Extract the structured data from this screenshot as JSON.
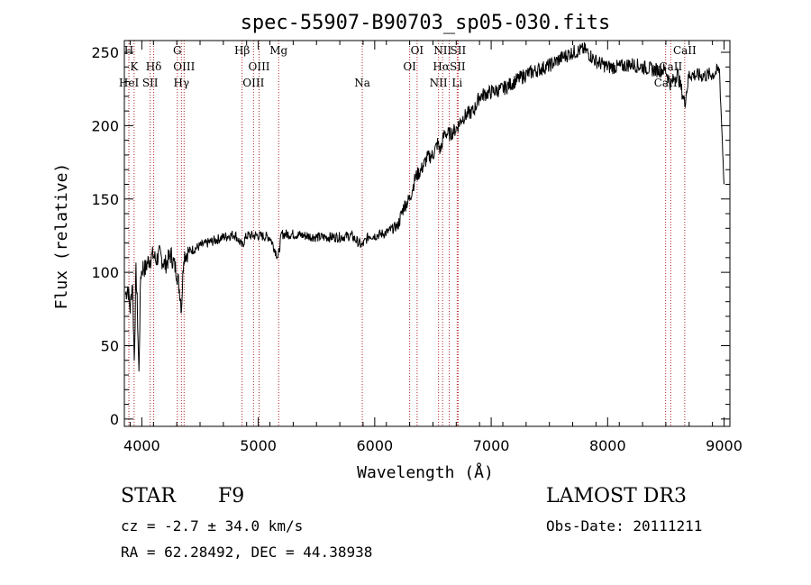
{
  "chart_data": {
    "type": "line",
    "title": "spec-55907-B90703_sp05-030.fits",
    "xlabel": "Wavelength (Å)",
    "ylabel": "Flux (relative)",
    "xlim": [
      3850,
      9050
    ],
    "ylim": [
      -5,
      258
    ],
    "xticks": [
      4000,
      5000,
      6000,
      7000,
      8000,
      9000
    ],
    "yticks": [
      0,
      50,
      100,
      150,
      200,
      250
    ],
    "series": [
      {
        "name": "spectrum",
        "x": [
          3860,
          3880,
          3900,
          3920,
          3935,
          3950,
          3960,
          3975,
          3990,
          4010,
          4030,
          4050,
          4080,
          4100,
          4120,
          4150,
          4200,
          4250,
          4300,
          4330,
          4340,
          4360,
          4400,
          4500,
          4600,
          4700,
          4800,
          4860,
          4900,
          5000,
          5100,
          5170,
          5200,
          5300,
          5400,
          5500,
          5600,
          5700,
          5800,
          5890,
          5950,
          6000,
          6100,
          6200,
          6250,
          6300,
          6350,
          6400,
          6450,
          6500,
          6540,
          6563,
          6600,
          6650,
          6700,
          6750,
          6800,
          6850,
          6900,
          7000,
          7100,
          7200,
          7300,
          7400,
          7500,
          7600,
          7700,
          7800,
          7900,
          8000,
          8100,
          8200,
          8300,
          8400,
          8498,
          8542,
          8600,
          8662,
          8700,
          8800,
          8900,
          8960,
          9000
        ],
        "y": [
          85,
          90,
          75,
          95,
          40,
          100,
          80,
          30,
          98,
          104,
          102,
          107,
          110,
          112,
          108,
          112,
          105,
          112,
          100,
          85,
          75,
          112,
          114,
          118,
          121,
          124,
          126,
          118,
          125,
          125,
          124,
          110,
          126,
          126,
          125,
          124,
          124,
          124,
          125,
          118,
          125,
          125,
          127,
          132,
          145,
          150,
          165,
          170,
          178,
          180,
          188,
          183,
          195,
          194,
          198,
          205,
          208,
          210,
          220,
          223,
          225,
          230,
          235,
          238,
          241,
          246,
          250,
          252,
          244,
          240,
          240,
          242,
          240,
          238,
          238,
          228,
          236,
          215,
          235,
          234,
          235,
          238,
          160
        ]
      }
    ],
    "lines": [
      {
        "label": "H",
        "x": 3889,
        "row": 0
      },
      {
        "label": "K",
        "x": 3934,
        "row": 1
      },
      {
        "label": "HeI",
        "x": 3889,
        "row": 2
      },
      {
        "label": "SII",
        "x": 4072,
        "row": 2
      },
      {
        "label": "Hδ",
        "x": 4102,
        "row": 1
      },
      {
        "label": "G",
        "x": 4305,
        "row": 0
      },
      {
        "label": "OIII",
        "x": 4363,
        "row": 1
      },
      {
        "label": "Hγ",
        "x": 4340,
        "row": 2
      },
      {
        "label": "Hβ",
        "x": 4861,
        "row": 0
      },
      {
        "label": "OIII",
        "x": 5007,
        "row": 1
      },
      {
        "label": "OIII",
        "x": 4959,
        "row": 2
      },
      {
        "label": "Mg",
        "x": 5175,
        "row": 0
      },
      {
        "label": "Na",
        "x": 5893,
        "row": 2
      },
      {
        "label": "OI",
        "x": 6364,
        "row": 0
      },
      {
        "label": "OI",
        "x": 6300,
        "row": 1
      },
      {
        "label": "NII",
        "x": 6583,
        "row": 0
      },
      {
        "label": "SII",
        "x": 6716,
        "row": 0
      },
      {
        "label": "HαSII",
        "x": 6640,
        "row": 1
      },
      {
        "label": "NII",
        "x": 6548,
        "row": 2
      },
      {
        "label": "Li",
        "x": 6708,
        "row": 2
      },
      {
        "label": "CaII",
        "x": 8662,
        "row": 0
      },
      {
        "label": "CaII",
        "x": 8542,
        "row": 1
      },
      {
        "label": "CaII",
        "x": 8498,
        "row": 2
      }
    ]
  },
  "info": {
    "object_class": "STAR",
    "subclass": "F9",
    "survey": "LAMOST DR3",
    "redshift": "cz = -2.7 ± 34.0 km/s",
    "obs_date": "Obs-Date: 20111211",
    "coords": "RA =  62.28492, DEC =  44.38938"
  },
  "colors": {
    "line_marker": "#b22222",
    "spectrum": "#000000"
  }
}
